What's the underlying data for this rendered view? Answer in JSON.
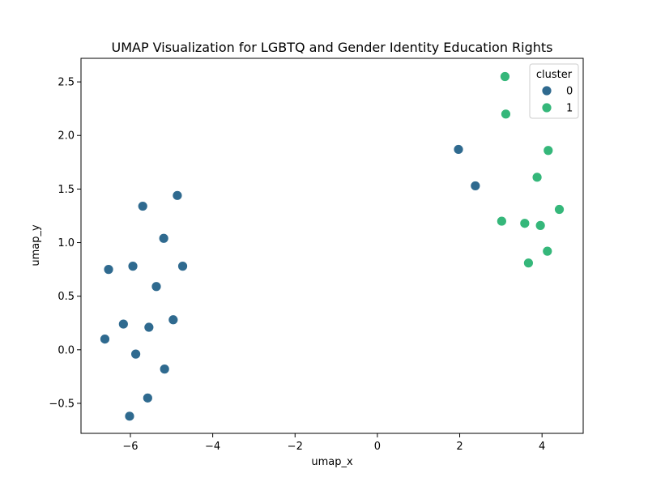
{
  "chart_data": {
    "type": "scatter",
    "title": "UMAP Visualization for LGBTQ and Gender Identity Education Rights",
    "xlabel": "umap_x",
    "ylabel": "umap_y",
    "xlim": [
      -7.2,
      5.0
    ],
    "ylim": [
      -0.78,
      2.72
    ],
    "xticks": [
      -6,
      -4,
      -2,
      0,
      2,
      4
    ],
    "xtick_labels": [
      "−6",
      "−4",
      "−2",
      "0",
      "2",
      "4"
    ],
    "yticks": [
      -0.5,
      0.0,
      0.5,
      1.0,
      1.5,
      2.0,
      2.5
    ],
    "ytick_labels": [
      "−0.5",
      "0.0",
      "0.5",
      "1.0",
      "1.5",
      "2.0",
      "2.5"
    ],
    "grid": false,
    "legend": {
      "title": "cluster",
      "placement": "top-right",
      "entries": [
        "0",
        "1"
      ]
    },
    "series": [
      {
        "name": "0",
        "color": "#2f6a8f",
        "points": [
          [
            -4.86,
            1.44
          ],
          [
            -5.7,
            1.34
          ],
          [
            -5.19,
            1.04
          ],
          [
            -6.53,
            0.75
          ],
          [
            -5.94,
            0.78
          ],
          [
            -4.73,
            0.78
          ],
          [
            -5.37,
            0.59
          ],
          [
            -6.62,
            0.1
          ],
          [
            -6.17,
            0.24
          ],
          [
            -5.55,
            0.21
          ],
          [
            -4.96,
            0.28
          ],
          [
            -5.87,
            -0.04
          ],
          [
            -5.17,
            -0.18
          ],
          [
            -5.58,
            -0.45
          ],
          [
            -6.02,
            -0.62
          ],
          [
            1.97,
            1.87
          ],
          [
            2.38,
            1.53
          ]
        ]
      },
      {
        "name": "1",
        "color": "#35b77a",
        "points": [
          [
            3.1,
            2.55
          ],
          [
            3.12,
            2.2
          ],
          [
            4.15,
            1.86
          ],
          [
            3.88,
            1.61
          ],
          [
            4.42,
            1.31
          ],
          [
            3.02,
            1.2
          ],
          [
            3.58,
            1.18
          ],
          [
            3.96,
            1.16
          ],
          [
            4.13,
            0.92
          ],
          [
            3.67,
            0.81
          ]
        ]
      }
    ]
  }
}
